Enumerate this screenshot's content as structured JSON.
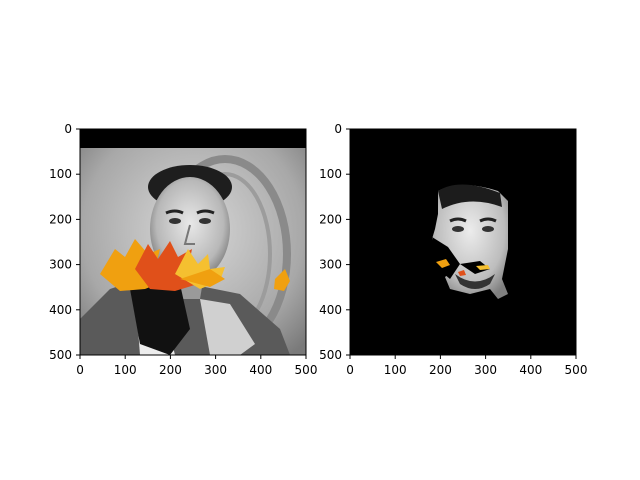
{
  "figure": {
    "panels": [
      {
        "id": "left",
        "description_key": "original-image",
        "x_ticks": [
          "0",
          "100",
          "200",
          "300",
          "400",
          "500"
        ],
        "y_ticks": [
          "0",
          "100",
          "200",
          "300",
          "400",
          "500"
        ]
      },
      {
        "id": "right",
        "description_key": "segmented-face-mask",
        "x_ticks": [
          "0",
          "100",
          "200",
          "300",
          "400",
          "500"
        ],
        "y_ticks": [
          "0",
          "100",
          "200",
          "300",
          "400",
          "500"
        ]
      }
    ]
  },
  "colors": {
    "background": "#ffffff",
    "mask_black": "#000000",
    "leaf_orange": "#f0a010",
    "leaf_red": "#e0501a",
    "leaf_yellow": "#f5c030"
  }
}
